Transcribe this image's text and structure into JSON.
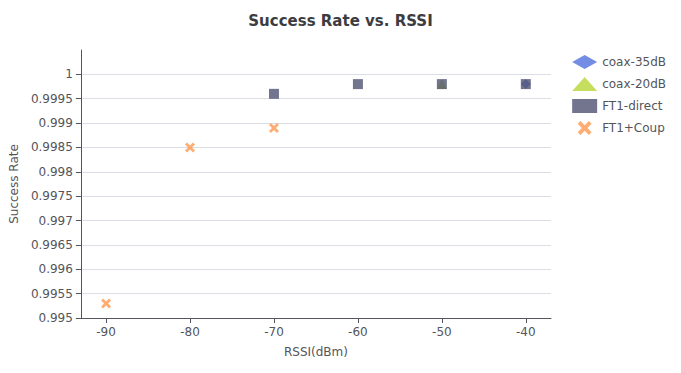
{
  "chart_data": {
    "type": "scatter",
    "title": "Success Rate vs. RSSI",
    "xlabel": "RSSI(dBm)",
    "ylabel": "Success Rate",
    "xlim": [
      -93,
      -37
    ],
    "ylim": [
      0.995,
      1.0005
    ],
    "xticks": [
      -90,
      -80,
      -70,
      -60,
      -50,
      -40
    ],
    "yticks": [
      0.995,
      0.9955,
      0.996,
      0.9965,
      0.997,
      0.9975,
      0.998,
      0.9985,
      0.999,
      0.9995,
      1
    ],
    "grid": "y",
    "legend": "right",
    "series": [
      {
        "name": "coax-35dB",
        "marker": "diamond",
        "x": [
          -40
        ],
        "values": [
          0.9998
        ]
      },
      {
        "name": "coax-20dB",
        "marker": "triangle",
        "x": [
          -50
        ],
        "values": [
          0.9998
        ]
      },
      {
        "name": "FT1-direct",
        "marker": "square",
        "x": [
          -70,
          -60,
          -50,
          -40
        ],
        "values": [
          0.9996,
          0.9998,
          0.9998,
          0.9998
        ]
      },
      {
        "name": "FT1+Coup",
        "marker": "x",
        "x": [
          -90,
          -80,
          -70
        ],
        "values": [
          0.9953,
          0.9985,
          0.9989
        ]
      }
    ]
  }
}
